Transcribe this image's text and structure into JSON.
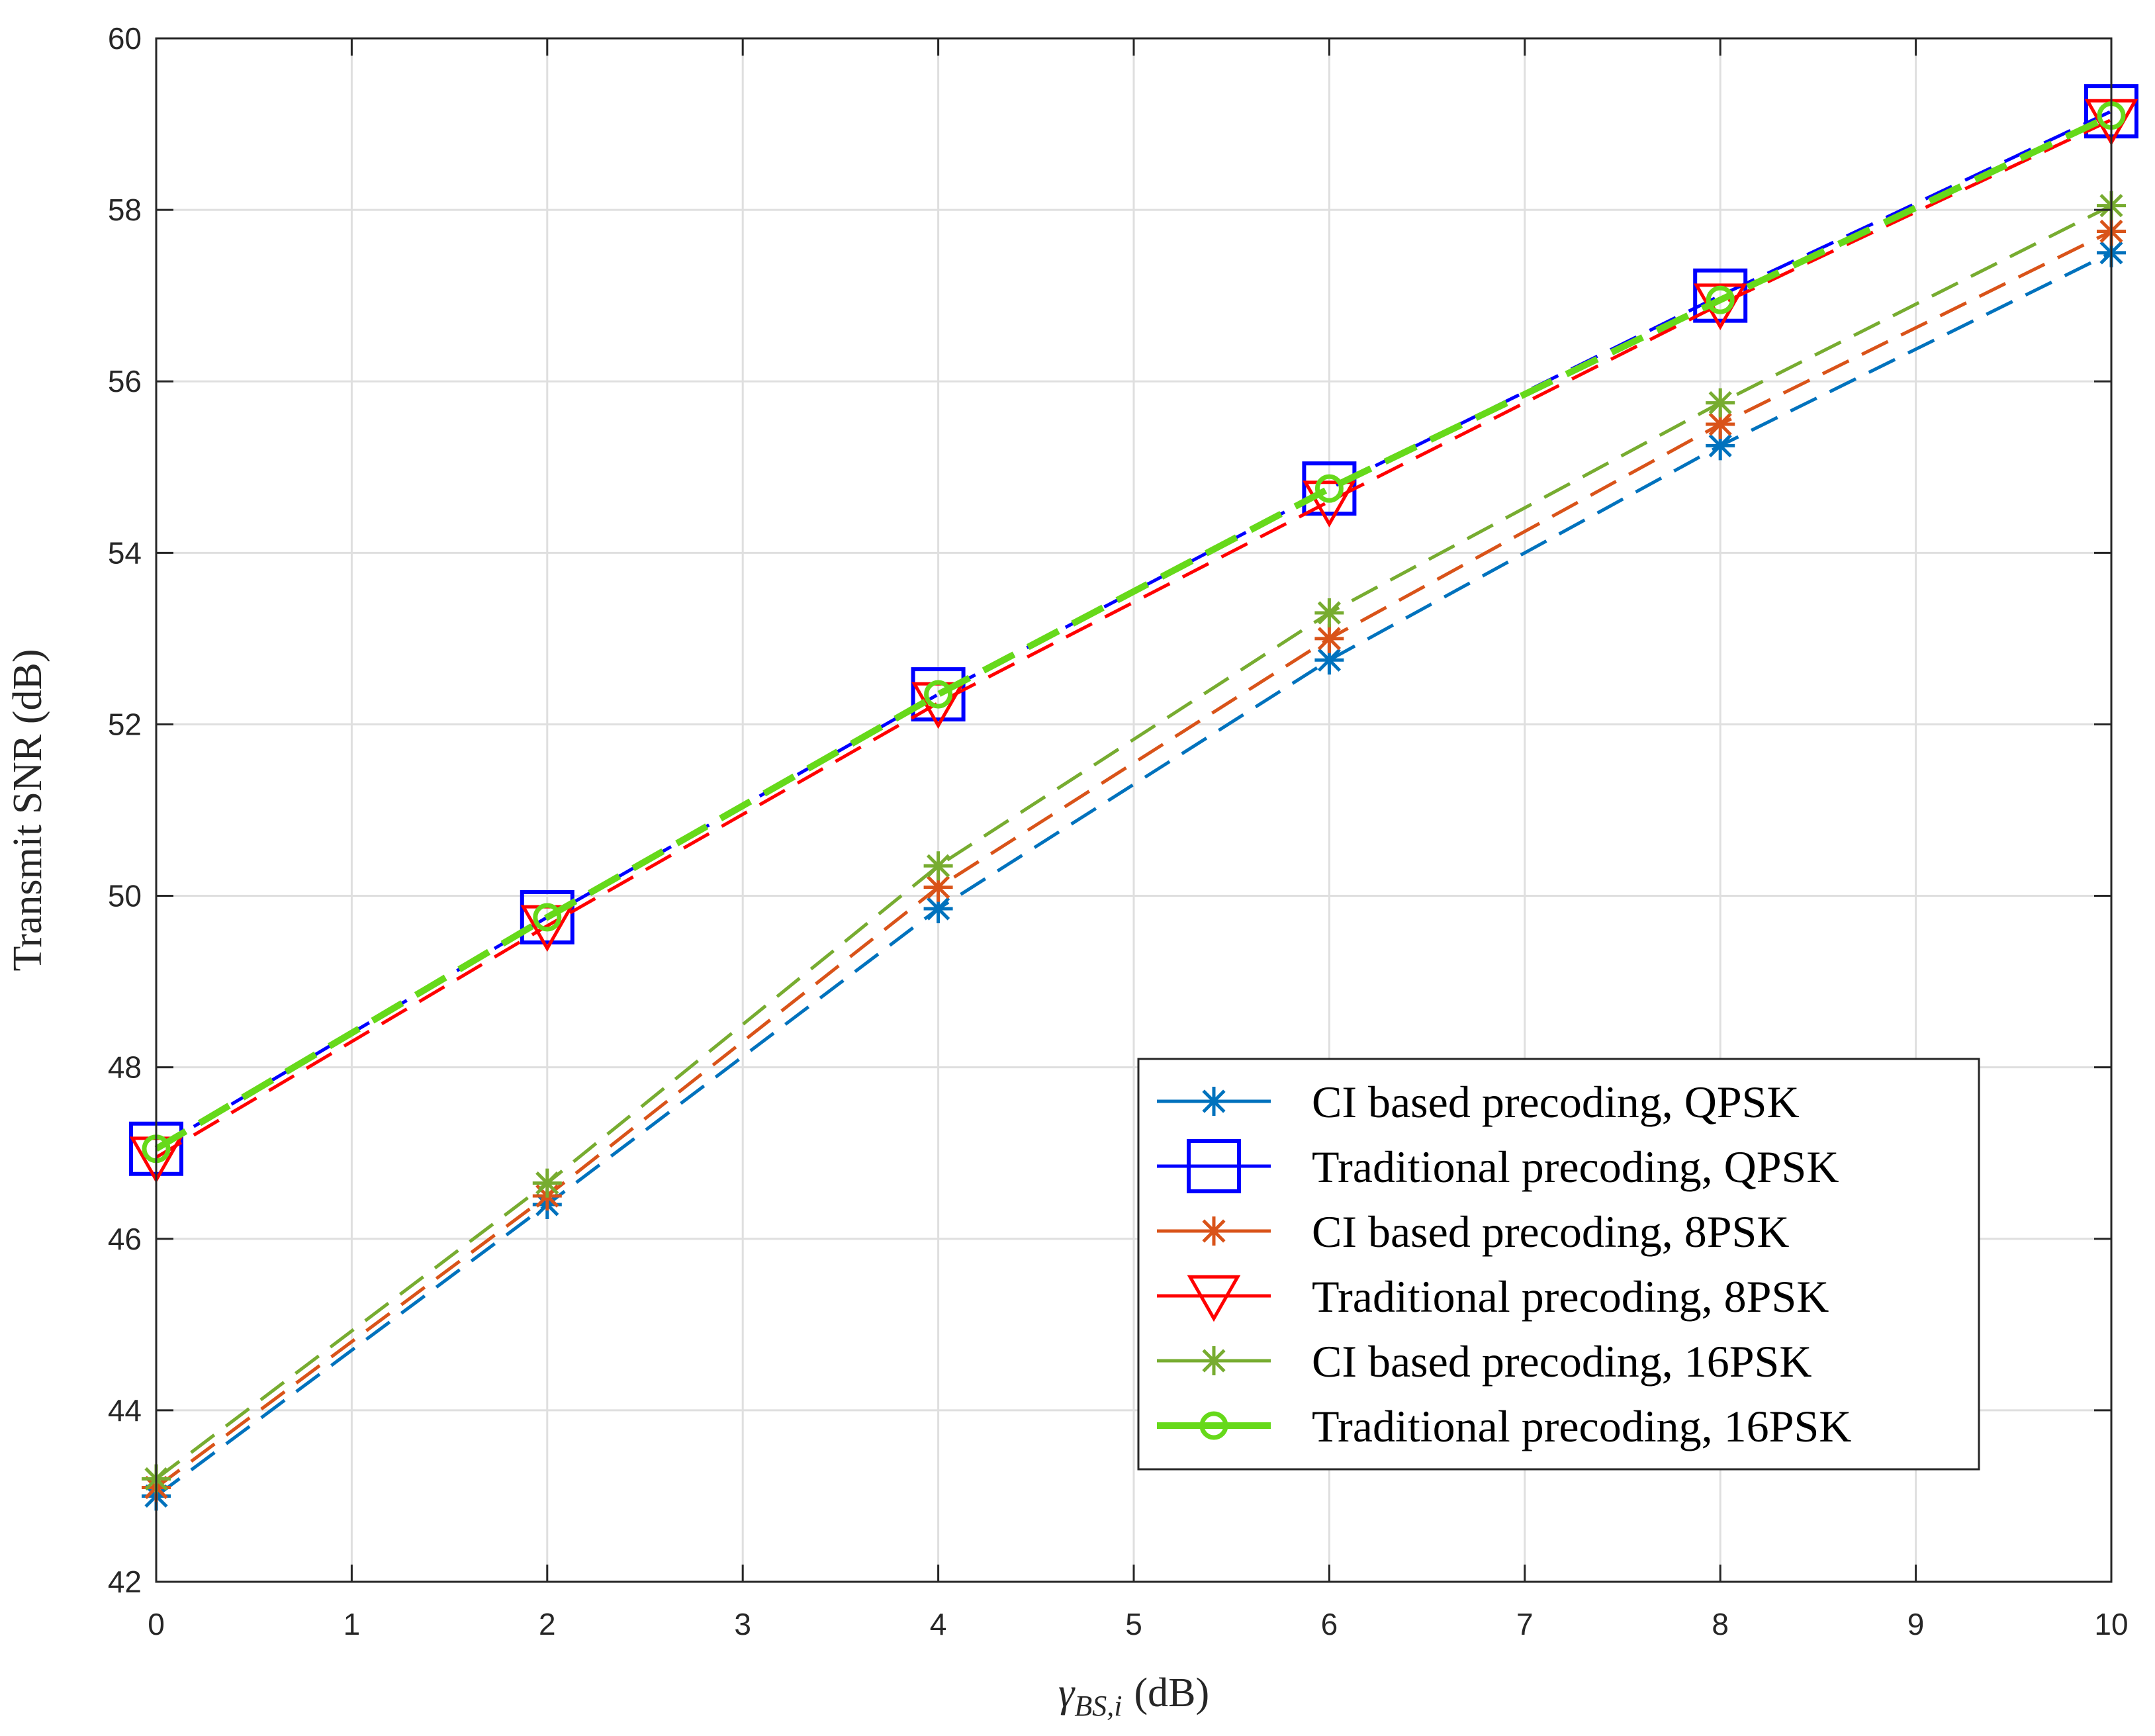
{
  "chart_data": {
    "type": "line",
    "title": "",
    "xlabel": "(dB)",
    "xlabel_symbol": "γ",
    "xlabel_subscript": "BS,i",
    "ylabel": "Transmit SNR (dB)",
    "xlim": [
      0,
      10
    ],
    "ylim": [
      42,
      60
    ],
    "xticks": [
      0,
      1,
      2,
      3,
      4,
      5,
      6,
      7,
      8,
      9,
      10
    ],
    "yticks": [
      42,
      44,
      46,
      48,
      50,
      52,
      54,
      56,
      58,
      60
    ],
    "grid": true,
    "legend_position": "lower-right",
    "x": [
      0,
      2,
      4,
      6,
      8,
      10
    ],
    "series": [
      {
        "name": "CI based precoding, QPSK",
        "color": "#0072BD",
        "marker": "asterisk",
        "dash": "long",
        "width": "thin",
        "values": [
          43.0,
          46.4,
          49.85,
          52.75,
          55.25,
          57.5
        ]
      },
      {
        "name": "Traditional precoding, QPSK",
        "color": "#0000FF",
        "marker": "square",
        "dash": "long",
        "width": "thin",
        "values": [
          47.05,
          49.75,
          52.35,
          54.75,
          57.0,
          59.15
        ]
      },
      {
        "name": "CI based precoding, 8PSK",
        "color": "#D95319",
        "marker": "asterisk",
        "dash": "long",
        "width": "thin",
        "values": [
          43.1,
          46.5,
          50.1,
          53.0,
          55.5,
          57.75
        ]
      },
      {
        "name": "Traditional precoding, 8PSK",
        "color": "#FF0000",
        "marker": "triangle-down",
        "dash": "long",
        "width": "thin",
        "values": [
          46.95,
          49.65,
          52.25,
          54.6,
          56.9,
          59.05
        ]
      },
      {
        "name": "CI based precoding, 16PSK",
        "color": "#77AC30",
        "marker": "asterisk",
        "dash": "long",
        "width": "thin",
        "values": [
          43.2,
          46.65,
          50.35,
          53.3,
          55.75,
          58.05
        ]
      },
      {
        "name": "Traditional precoding, 16PSK",
        "color": "#66D91A",
        "marker": "circle",
        "dash": "long",
        "width": "thick",
        "values": [
          47.05,
          49.75,
          52.35,
          54.75,
          56.95,
          59.1
        ]
      }
    ]
  }
}
